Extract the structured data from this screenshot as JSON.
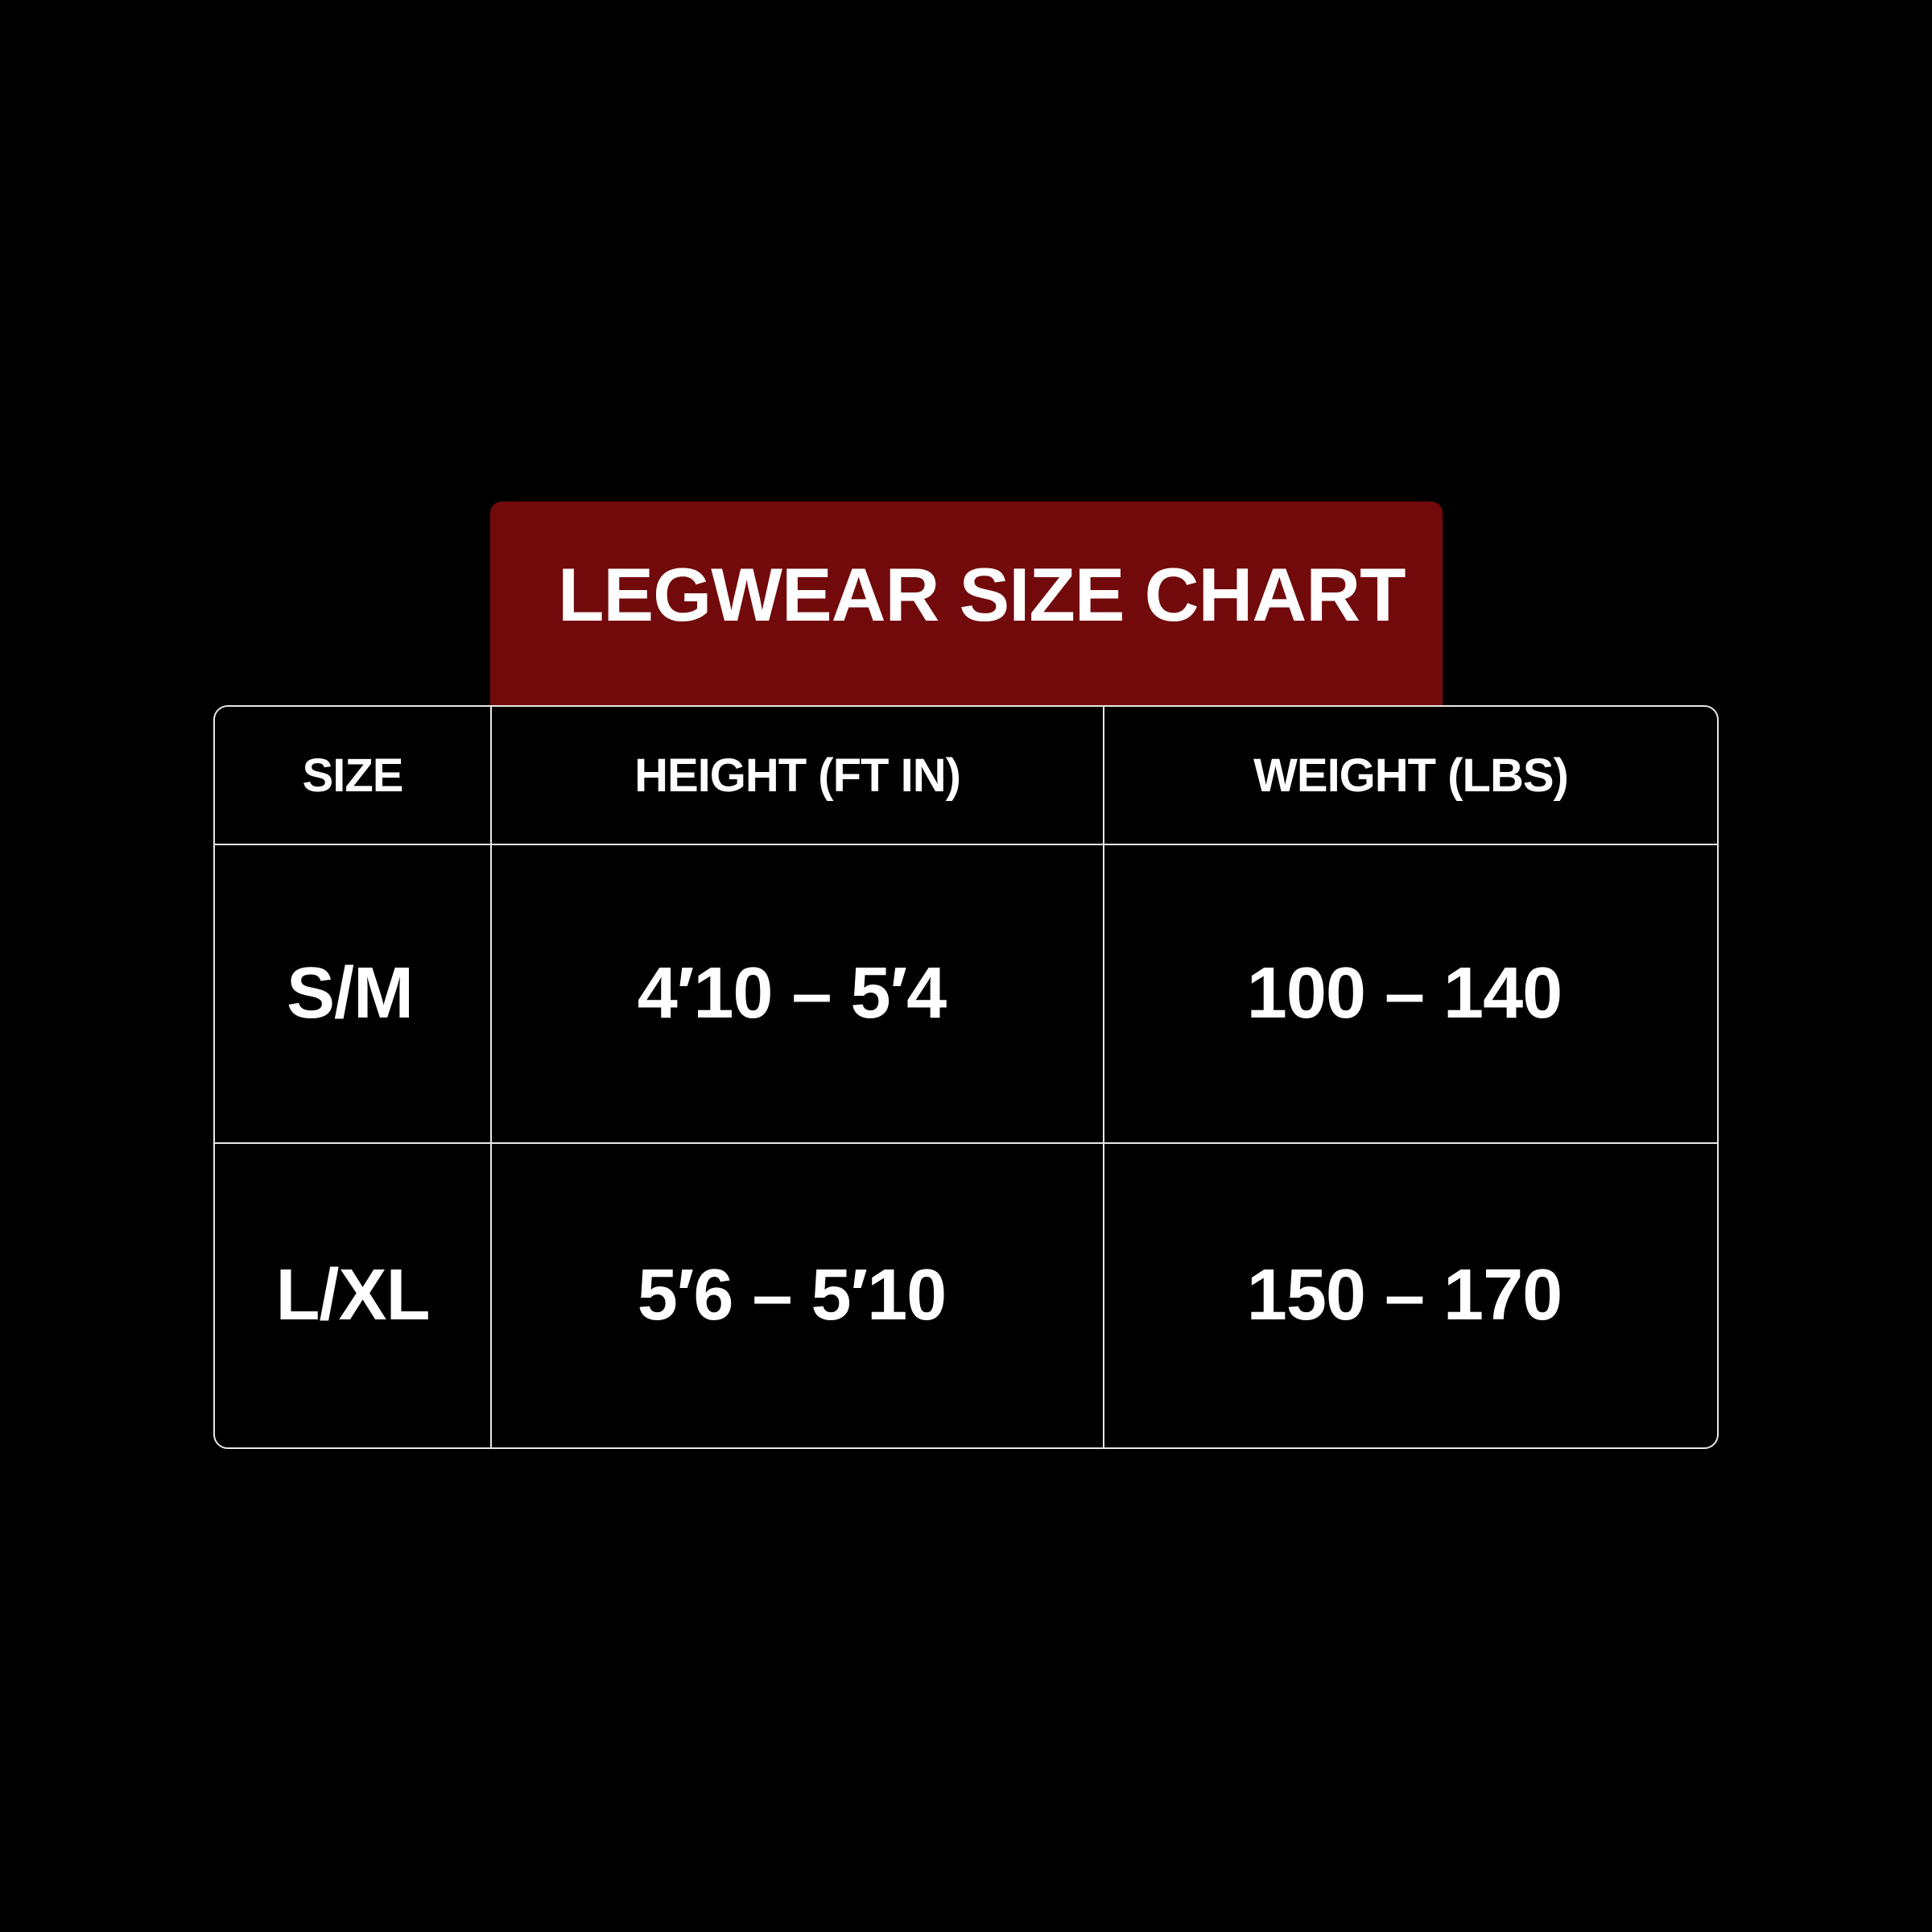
{
  "title": "LEGWEAR SIZE CHART",
  "colors": {
    "background": "#000000",
    "title_bg": "#720a0b",
    "text": "#ffffff",
    "grid": "#e8e8e8"
  },
  "table": {
    "headers": [
      "SIZE",
      "HEIGHT (FT IN)",
      "WEIGHT (LBS)"
    ],
    "rows": [
      [
        "S/M",
        "4′10 – 5′4",
        "100 – 140"
      ],
      [
        "L/XL",
        "5′6 – 5′10",
        "150 – 170"
      ]
    ]
  }
}
